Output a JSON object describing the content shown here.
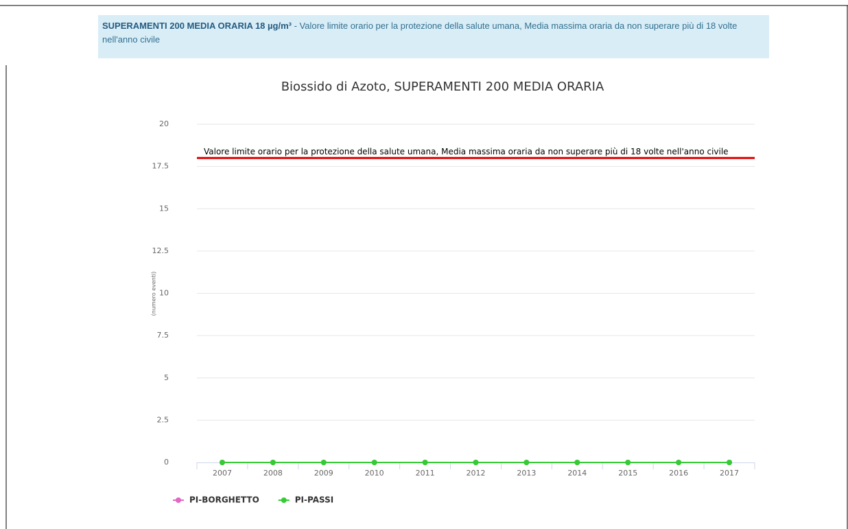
{
  "header": {
    "title": "SUPERAMENTI 200 MEDIA ORARIA 18 µg/m³",
    "text": " - Valore limite orario per la protezione della salute umana, Media massima oraria da non superare più di 18 volte nell'anno civile"
  },
  "chart_data": {
    "type": "line",
    "title": "Biossido di Azoto, SUPERAMENTI 200 MEDIA ORARIA",
    "y_label": "(numero eventi)",
    "categories": [
      "2007",
      "2008",
      "2009",
      "2010",
      "2011",
      "2012",
      "2013",
      "2014",
      "2015",
      "2016",
      "2017"
    ],
    "series": [
      {
        "name": "PI-BORGHETTO",
        "color": "#e066c8",
        "values": [
          0,
          0,
          0,
          0,
          0,
          0,
          0,
          0,
          0,
          0,
          0
        ]
      },
      {
        "name": "PI-PASSI",
        "color": "#33cc33",
        "values": [
          0,
          0,
          0,
          0,
          0,
          0,
          0,
          0,
          0,
          0,
          0
        ]
      }
    ],
    "ylim": [
      0,
      20
    ],
    "yticks": [
      0,
      2.5,
      5,
      7.5,
      10,
      12.5,
      15,
      17.5,
      20
    ],
    "grid": true,
    "plot_line": {
      "value": 18,
      "color": "#e00000",
      "label": "Valore limite orario per la protezione della salute umana, Media massima oraria da non superare più di 18 volte nell'anno civile"
    }
  }
}
